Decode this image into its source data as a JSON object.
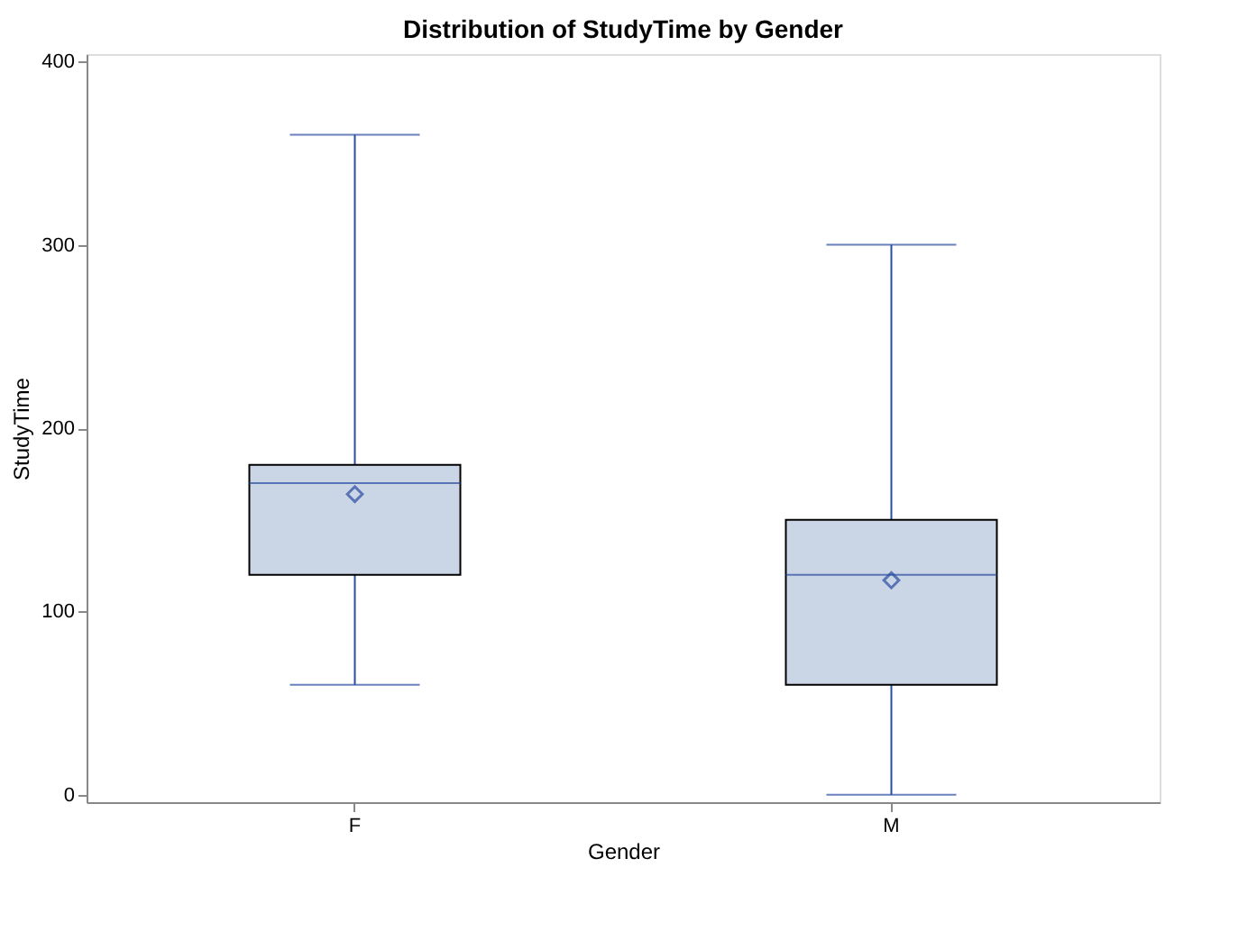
{
  "chart_data": {
    "type": "box",
    "title": "Distribution of StudyTime by Gender",
    "xlabel": "Gender",
    "ylabel": "StudyTime",
    "categories": [
      "F",
      "M"
    ],
    "series": [
      {
        "color": "#cad5e6",
        "boxes": [
          {
            "low": 60,
            "q1": 120,
            "median": 170,
            "q3": 180,
            "high": 360,
            "mean": 164
          },
          {
            "low": 0,
            "q1": 60,
            "median": 120,
            "q3": 150,
            "high": 300,
            "mean": 117
          }
        ]
      }
    ],
    "ylim": [
      -4,
      404
    ],
    "yticks": [
      0,
      100,
      200,
      300,
      400
    ],
    "grid": false,
    "marker": "diamond"
  }
}
